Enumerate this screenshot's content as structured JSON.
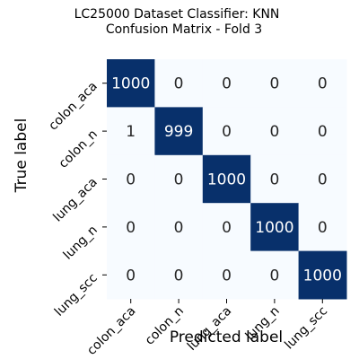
{
  "chart_data": {
    "type": "heatmap",
    "title": "LC25000 Dataset Classifier: KNN",
    "subtitle": "Confusion Matrix - Fold 3",
    "xlabel": "Predicted label",
    "ylabel": "True label",
    "x_categories": [
      "colon_aca",
      "colon_n",
      "lung_aca",
      "lung_n",
      "lung_scc"
    ],
    "y_categories": [
      "colon_aca",
      "colon_n",
      "lung_aca",
      "lung_n",
      "lung_scc"
    ],
    "values": [
      [
        1000,
        0,
        0,
        0,
        0
      ],
      [
        1,
        999,
        0,
        0,
        0
      ],
      [
        0,
        0,
        1000,
        0,
        0
      ],
      [
        0,
        0,
        0,
        1000,
        0
      ],
      [
        0,
        0,
        0,
        0,
        1000
      ]
    ],
    "value_range": [
      0,
      1000
    ],
    "colormap": "Blues",
    "colors": {
      "low": "#f7fbff",
      "high": "#08306b",
      "text_dark": "#262626",
      "text_light": "#ffffff"
    },
    "colorbar": false,
    "grid": false
  }
}
